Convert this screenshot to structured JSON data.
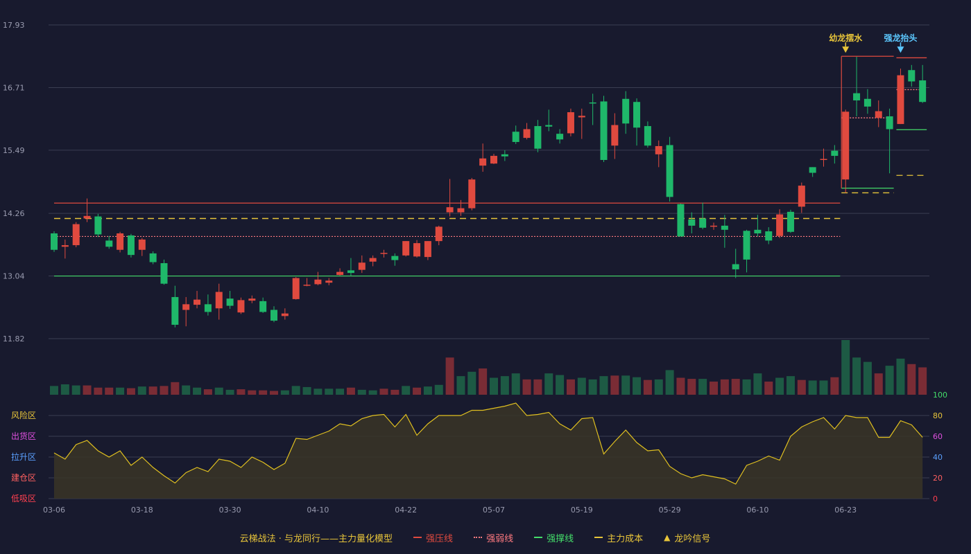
{
  "chart_data": {
    "type": "candlestick",
    "title": "云梯战法 · 与龙同行——主力量化模型",
    "price_axis": {
      "ticks": [
        11.82,
        13.04,
        14.26,
        15.49,
        16.71,
        17.93
      ],
      "ylim": [
        11.82,
        17.93
      ]
    },
    "date_ticks": [
      {
        "i": 0,
        "label": "03-06"
      },
      {
        "i": 8,
        "label": "03-18"
      },
      {
        "i": 16,
        "label": "03-30"
      },
      {
        "i": 24,
        "label": "04-10"
      },
      {
        "i": 32,
        "label": "04-22"
      },
      {
        "i": 40,
        "label": "05-07"
      },
      {
        "i": 48,
        "label": "05-19"
      },
      {
        "i": 56,
        "label": "05-29"
      },
      {
        "i": 64,
        "label": "06-10"
      },
      {
        "i": 72,
        "label": "06-23"
      }
    ],
    "candles": [
      [
        13.87,
        13.55,
        13.91,
        13.51
      ],
      [
        13.61,
        13.64,
        13.75,
        13.38
      ],
      [
        13.64,
        14.05,
        14.09,
        13.6
      ],
      [
        14.16,
        14.21,
        14.55,
        14.09
      ],
      [
        14.2,
        13.85,
        14.25,
        13.8
      ],
      [
        13.73,
        13.61,
        13.82,
        13.57
      ],
      [
        13.55,
        13.87,
        13.9,
        13.5
      ],
      [
        13.83,
        13.45,
        13.86,
        13.4
      ],
      [
        13.55,
        13.75,
        13.78,
        13.43
      ],
      [
        13.48,
        13.31,
        13.52,
        13.27
      ],
      [
        13.29,
        12.89,
        13.36,
        12.87
      ],
      [
        12.63,
        12.09,
        12.85,
        12.04
      ],
      [
        12.38,
        12.49,
        12.63,
        12.06
      ],
      [
        12.48,
        12.58,
        12.75,
        12.41
      ],
      [
        12.49,
        12.34,
        12.68,
        12.27
      ],
      [
        12.41,
        12.73,
        12.89,
        12.19
      ],
      [
        12.6,
        12.46,
        12.75,
        12.4
      ],
      [
        12.33,
        12.57,
        12.62,
        12.3
      ],
      [
        12.56,
        12.6,
        12.66,
        12.51
      ],
      [
        12.55,
        12.34,
        12.62,
        12.32
      ],
      [
        12.38,
        12.17,
        12.45,
        12.14
      ],
      [
        12.26,
        12.31,
        12.41,
        12.19
      ],
      [
        12.59,
        13.0,
        13.02,
        12.58
      ],
      [
        12.86,
        12.87,
        13.0,
        12.84
      ],
      [
        12.88,
        12.97,
        13.12,
        12.86
      ],
      [
        12.91,
        12.95,
        13.0,
        12.86
      ],
      [
        13.06,
        13.12,
        13.19,
        13.05
      ],
      [
        13.15,
        13.1,
        13.39,
        13.04
      ],
      [
        13.16,
        13.3,
        13.44,
        13.1
      ],
      [
        13.32,
        13.39,
        13.44,
        13.23
      ],
      [
        13.47,
        13.49,
        13.55,
        13.4
      ],
      [
        13.43,
        13.35,
        13.48,
        13.24
      ],
      [
        13.44,
        13.72,
        13.72,
        13.42
      ],
      [
        13.42,
        13.68,
        13.74,
        13.4
      ],
      [
        13.41,
        13.72,
        13.72,
        13.35
      ],
      [
        13.72,
        14.0,
        14.02,
        13.64
      ],
      [
        14.28,
        14.38,
        14.93,
        14.2
      ],
      [
        14.28,
        14.36,
        14.52,
        14.21
      ],
      [
        14.36,
        14.92,
        14.95,
        14.32
      ],
      [
        15.19,
        15.33,
        15.62,
        15.07
      ],
      [
        15.23,
        15.38,
        15.42,
        15.22
      ],
      [
        15.41,
        15.37,
        15.49,
        15.28
      ],
      [
        15.85,
        15.65,
        15.97,
        15.61
      ],
      [
        15.73,
        15.9,
        16.02,
        15.7
      ],
      [
        15.96,
        15.52,
        16.08,
        15.45
      ],
      [
        15.98,
        15.95,
        16.28,
        15.86
      ],
      [
        15.81,
        15.7,
        15.9,
        15.62
      ],
      [
        15.82,
        16.23,
        16.3,
        15.76
      ],
      [
        16.13,
        16.16,
        16.3,
        15.71
      ],
      [
        16.42,
        16.41,
        16.59,
        15.98
      ],
      [
        16.44,
        15.3,
        16.55,
        15.26
      ],
      [
        15.58,
        15.98,
        16.21,
        15.32
      ],
      [
        16.49,
        16.01,
        16.64,
        15.81
      ],
      [
        16.43,
        15.93,
        16.5,
        15.58
      ],
      [
        15.96,
        15.58,
        16.05,
        15.54
      ],
      [
        15.41,
        15.57,
        15.68,
        15.16
      ],
      [
        15.59,
        14.58,
        15.75,
        14.49
      ],
      [
        14.44,
        13.81,
        14.45,
        13.81
      ],
      [
        14.14,
        14.02,
        14.28,
        13.87
      ],
      [
        14.16,
        13.98,
        14.47,
        13.95
      ],
      [
        14.01,
        14.02,
        14.08,
        13.94
      ],
      [
        14.02,
        13.94,
        14.23,
        13.59
      ],
      [
        13.27,
        13.17,
        13.57,
        13.0
      ],
      [
        13.92,
        13.36,
        13.94,
        13.11
      ],
      [
        13.94,
        13.87,
        14.23,
        13.81
      ],
      [
        13.91,
        13.73,
        13.99,
        13.66
      ],
      [
        13.82,
        14.24,
        14.34,
        13.78
      ],
      [
        14.29,
        13.9,
        14.33,
        13.88
      ],
      [
        14.39,
        14.8,
        14.86,
        14.27
      ],
      [
        15.16,
        15.05,
        15.16,
        14.97
      ],
      [
        15.32,
        15.32,
        15.52,
        15.17
      ],
      [
        15.48,
        15.38,
        15.59,
        15.23
      ],
      [
        14.92,
        16.24,
        16.28,
        14.66
      ],
      [
        16.6,
        16.46,
        17.31,
        16.15
      ],
      [
        16.49,
        16.34,
        16.68,
        16.2
      ],
      [
        16.12,
        16.25,
        16.46,
        15.94
      ],
      [
        16.15,
        15.9,
        16.3,
        15.04
      ],
      [
        16.0,
        16.95,
        17.08,
        16.0
      ],
      [
        17.05,
        16.83,
        17.15,
        16.73
      ],
      [
        16.85,
        16.43,
        17.15,
        16.41
      ]
    ],
    "volume": [
      {
        "v": 0.16,
        "up": false
      },
      {
        "v": 0.19,
        "up": false
      },
      {
        "v": 0.17,
        "up": false
      },
      {
        "v": 0.17,
        "up": true
      },
      {
        "v": 0.13,
        "up": true
      },
      {
        "v": 0.13,
        "up": true
      },
      {
        "v": 0.13,
        "up": false
      },
      {
        "v": 0.12,
        "up": true
      },
      {
        "v": 0.15,
        "up": false
      },
      {
        "v": 0.15,
        "up": true
      },
      {
        "v": 0.16,
        "up": true
      },
      {
        "v": 0.23,
        "up": true
      },
      {
        "v": 0.17,
        "up": false
      },
      {
        "v": 0.13,
        "up": false
      },
      {
        "v": 0.1,
        "up": true
      },
      {
        "v": 0.13,
        "up": false
      },
      {
        "v": 0.09,
        "up": false
      },
      {
        "v": 0.1,
        "up": true
      },
      {
        "v": 0.08,
        "up": true
      },
      {
        "v": 0.08,
        "up": true
      },
      {
        "v": 0.07,
        "up": true
      },
      {
        "v": 0.08,
        "up": false
      },
      {
        "v": 0.16,
        "up": false
      },
      {
        "v": 0.14,
        "up": false
      },
      {
        "v": 0.11,
        "up": false
      },
      {
        "v": 0.11,
        "up": false
      },
      {
        "v": 0.11,
        "up": false
      },
      {
        "v": 0.13,
        "up": true
      },
      {
        "v": 0.09,
        "up": false
      },
      {
        "v": 0.08,
        "up": false
      },
      {
        "v": 0.11,
        "up": true
      },
      {
        "v": 0.09,
        "up": true
      },
      {
        "v": 0.16,
        "up": false
      },
      {
        "v": 0.13,
        "up": true
      },
      {
        "v": 0.15,
        "up": false
      },
      {
        "v": 0.18,
        "up": false
      },
      {
        "v": 0.68,
        "up": true
      },
      {
        "v": 0.34,
        "up": false
      },
      {
        "v": 0.42,
        "up": false
      },
      {
        "v": 0.48,
        "up": true
      },
      {
        "v": 0.31,
        "up": false
      },
      {
        "v": 0.34,
        "up": false
      },
      {
        "v": 0.39,
        "up": false
      },
      {
        "v": 0.28,
        "up": true
      },
      {
        "v": 0.28,
        "up": true
      },
      {
        "v": 0.39,
        "up": false
      },
      {
        "v": 0.36,
        "up": false
      },
      {
        "v": 0.28,
        "up": true
      },
      {
        "v": 0.31,
        "up": false
      },
      {
        "v": 0.28,
        "up": false
      },
      {
        "v": 0.34,
        "up": false
      },
      {
        "v": 0.35,
        "up": true
      },
      {
        "v": 0.35,
        "up": false
      },
      {
        "v": 0.32,
        "up": false
      },
      {
        "v": 0.27,
        "up": true
      },
      {
        "v": 0.28,
        "up": false
      },
      {
        "v": 0.45,
        "up": false
      },
      {
        "v": 0.31,
        "up": true
      },
      {
        "v": 0.29,
        "up": true
      },
      {
        "v": 0.29,
        "up": false
      },
      {
        "v": 0.24,
        "up": true
      },
      {
        "v": 0.28,
        "up": true
      },
      {
        "v": 0.29,
        "up": true
      },
      {
        "v": 0.28,
        "up": false
      },
      {
        "v": 0.39,
        "up": false
      },
      {
        "v": 0.24,
        "up": true
      },
      {
        "v": 0.31,
        "up": false
      },
      {
        "v": 0.34,
        "up": false
      },
      {
        "v": 0.27,
        "up": true
      },
      {
        "v": 0.26,
        "up": false
      },
      {
        "v": 0.26,
        "up": false
      },
      {
        "v": 0.32,
        "up": true
      },
      {
        "v": 1.0,
        "up": false
      },
      {
        "v": 0.68,
        "up": false
      },
      {
        "v": 0.6,
        "up": false
      },
      {
        "v": 0.39,
        "up": true
      },
      {
        "v": 0.53,
        "up": false
      },
      {
        "v": 0.66,
        "up": false
      },
      {
        "v": 0.56,
        "up": true
      },
      {
        "v": 0.5,
        "up": true
      }
    ],
    "indicator": {
      "ylim": [
        0,
        100
      ],
      "ticks": [
        0,
        20,
        40,
        60,
        80,
        100
      ],
      "zones": [
        "风险区",
        "出货区",
        "拉升区",
        "建仓区",
        "低吸区"
      ],
      "values": [
        44,
        38,
        52,
        56,
        46,
        40,
        46,
        32,
        40,
        30,
        22,
        15,
        25,
        30,
        26,
        38,
        36,
        30,
        40,
        35,
        28,
        34,
        58,
        57,
        61,
        65,
        72,
        70,
        77,
        80,
        81,
        69,
        81,
        61,
        72,
        80,
        80,
        80,
        85,
        85,
        87,
        89,
        92,
        80,
        81,
        83,
        72,
        66,
        77,
        78,
        43,
        55,
        66,
        54,
        46,
        47,
        31,
        24,
        20,
        23,
        21,
        19,
        14,
        32,
        36,
        41,
        37,
        60,
        69,
        74,
        78,
        67,
        80,
        78,
        78,
        59,
        59,
        75,
        71,
        59
      ]
    },
    "levels": [
      {
        "name": "强压线",
        "value": 14.46,
        "color": "#e04a3f",
        "style": "solid"
      },
      {
        "name": "强弱线",
        "value": 13.81,
        "color": "#ff7a80",
        "style": "dotted"
      },
      {
        "name": "强撑线",
        "value": 13.04,
        "color": "#44dd6a",
        "style": "solid"
      },
      {
        "name": "主力成本",
        "value": 14.16,
        "color": "#e8c53a",
        "style": "dashed"
      }
    ],
    "signals": [
      {
        "i": 72,
        "label": "幼龙摆水",
        "color": "#e8c53a"
      },
      {
        "i": 77,
        "label": "强龙抬头",
        "color": "#5cc8ff"
      }
    ],
    "colors": {
      "up": "#e04a3f",
      "down": "#1fb86a",
      "grid": "#3a3d52",
      "axis_text": "#9a9cb0",
      "volume_up": "#7a2c35",
      "volume_down": "#1d5a44",
      "indicator_line": "#e0c020",
      "indicator_fill": "#3a3526"
    }
  },
  "legend": {
    "title": "云梯战法 · 与龙同行——主力量化模型",
    "items": [
      {
        "label": "强压线",
        "color": "#e04a3f",
        "style": "solid"
      },
      {
        "label": "强弱线",
        "color": "#ff7a80",
        "style": "dotted"
      },
      {
        "label": "强撑线",
        "color": "#44dd6a",
        "style": "solid"
      },
      {
        "label": "主力成本",
        "color": "#e8c53a",
        "style": "dashed"
      },
      {
        "label": "龙吟信号",
        "color": "#e8c53a",
        "style": "triangle"
      }
    ]
  }
}
